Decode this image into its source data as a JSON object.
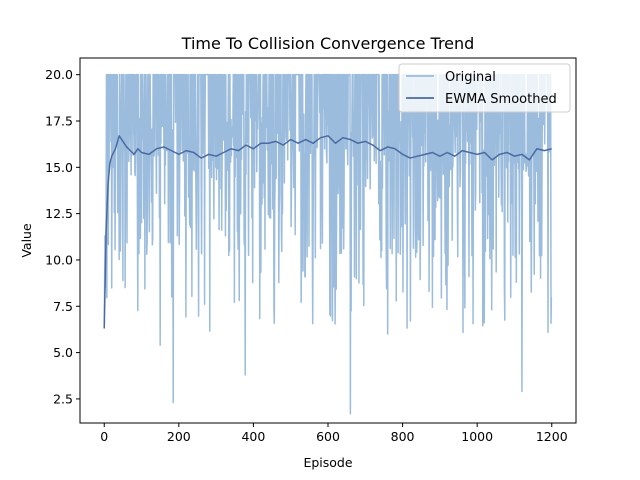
{
  "chart_data": {
    "type": "line",
    "title": "Time To Collision Convergence Trend",
    "xlabel": "Episode",
    "ylabel": "Value",
    "xlim": [
      -65,
      1265
    ],
    "ylim": [
      1.2,
      20.9
    ],
    "xticks": [
      0,
      200,
      400,
      600,
      800,
      1000,
      1200
    ],
    "yticks": [
      2.5,
      5.0,
      7.5,
      10.0,
      12.5,
      15.0,
      17.5,
      20.0
    ],
    "ytick_labels": [
      "2.5",
      "5.0",
      "7.5",
      "10.0",
      "12.5",
      "15.0",
      "17.5",
      "20.0"
    ],
    "grid": false,
    "legend_position": "top-right",
    "series": [
      {
        "name": "Original",
        "color": "#9bbcdc",
        "n_points": 1200,
        "value_range": [
          1.7,
          20.0
        ],
        "notable_dips": [
          {
            "x": 185,
            "y": 2.3
          },
          {
            "x": 378,
            "y": 3.8
          },
          {
            "x": 660,
            "y": 1.7
          },
          {
            "x": 1120,
            "y": 2.9
          },
          {
            "x": 150,
            "y": 5.4
          },
          {
            "x": 1190,
            "y": 6.1
          }
        ]
      },
      {
        "name": "EWMA Smoothed",
        "color": "#4b6aa3",
        "x": [
          0,
          5,
          10,
          15,
          20,
          30,
          40,
          50,
          60,
          70,
          80,
          90,
          100,
          120,
          140,
          160,
          180,
          200,
          220,
          240,
          260,
          280,
          300,
          320,
          340,
          360,
          380,
          400,
          420,
          440,
          460,
          480,
          500,
          520,
          540,
          560,
          580,
          600,
          620,
          640,
          660,
          680,
          700,
          720,
          740,
          760,
          780,
          800,
          820,
          840,
          860,
          880,
          900,
          920,
          940,
          960,
          980,
          1000,
          1020,
          1040,
          1060,
          1080,
          1100,
          1120,
          1140,
          1160,
          1180,
          1200
        ],
        "y": [
          6.3,
          11.5,
          14.0,
          15.2,
          15.6,
          16.0,
          16.7,
          16.4,
          16.1,
          15.9,
          15.7,
          16.0,
          15.8,
          15.7,
          16.0,
          16.1,
          15.9,
          15.7,
          15.9,
          15.8,
          15.5,
          15.7,
          15.6,
          15.8,
          16.0,
          15.9,
          16.2,
          16.0,
          16.3,
          16.3,
          16.4,
          16.2,
          16.5,
          16.3,
          16.5,
          16.3,
          16.6,
          16.7,
          16.3,
          16.6,
          16.5,
          16.3,
          16.4,
          16.2,
          15.9,
          16.1,
          16.0,
          15.7,
          15.5,
          15.6,
          15.7,
          15.8,
          15.6,
          15.8,
          15.6,
          15.9,
          15.8,
          15.7,
          15.8,
          15.4,
          15.7,
          15.8,
          15.6,
          15.7,
          15.4,
          16.0,
          15.9,
          16.0
        ]
      }
    ]
  }
}
